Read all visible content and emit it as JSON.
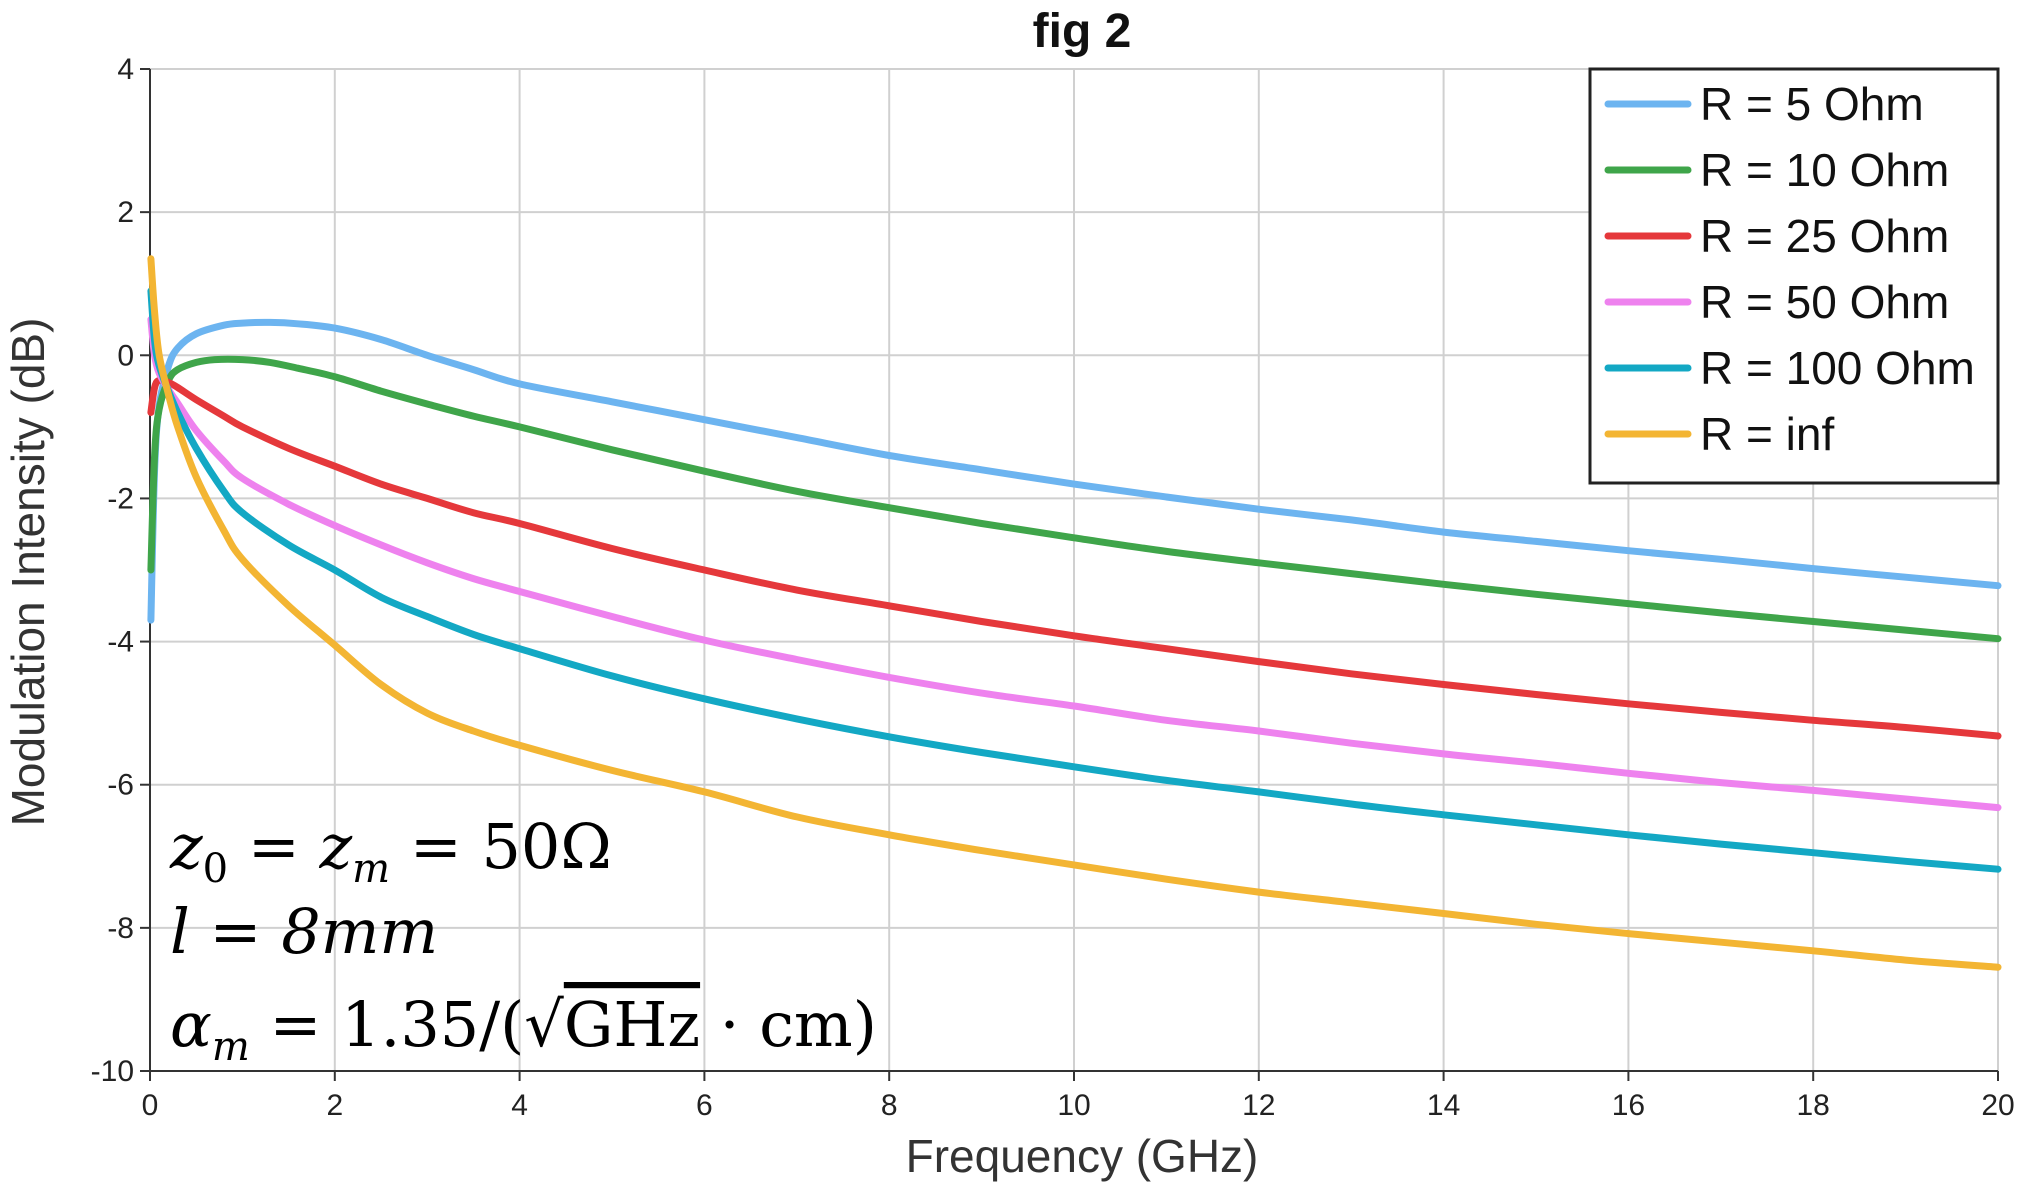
{
  "chart_data": {
    "type": "line",
    "title": "fig 2",
    "xlabel": "Frequency (GHz)",
    "ylabel": "Modulation Intensity (dB)",
    "xlim": [
      0,
      20
    ],
    "ylim": [
      -10,
      4
    ],
    "x_ticks": [
      0,
      2,
      4,
      6,
      8,
      10,
      12,
      14,
      16,
      18,
      20
    ],
    "y_ticks": [
      -10,
      -8,
      -6,
      -4,
      -2,
      0,
      2,
      4
    ],
    "grid": true,
    "legend_position": "top-right",
    "series": [
      {
        "name": "R = 5 Ohm",
        "color": "#6cb4f0",
        "x": [
          0.01,
          0.05,
          0.1,
          0.2,
          0.3,
          0.5,
          0.8,
          1.0,
          1.3,
          1.6,
          2.0,
          2.5,
          3.0,
          3.5,
          4.0,
          5.0,
          6.0,
          7.0,
          8.0,
          9.0,
          10.0,
          11.0,
          12.0,
          13.0,
          14.0,
          15.0,
          16.0,
          17.0,
          18.0,
          19.0,
          20.0
        ],
        "y": [
          -3.7,
          -1.6,
          -0.7,
          -0.15,
          0.1,
          0.3,
          0.42,
          0.45,
          0.46,
          0.44,
          0.38,
          0.22,
          0.0,
          -0.2,
          -0.4,
          -0.65,
          -0.9,
          -1.15,
          -1.4,
          -1.6,
          -1.8,
          -1.98,
          -2.15,
          -2.3,
          -2.47,
          -2.6,
          -2.73,
          -2.85,
          -2.98,
          -3.1,
          -3.22
        ]
      },
      {
        "name": "R = 10 Ohm",
        "color": "#3fa54a",
        "x": [
          0.01,
          0.05,
          0.1,
          0.2,
          0.3,
          0.5,
          0.7,
          1.0,
          1.3,
          1.6,
          2.0,
          2.5,
          3.0,
          3.5,
          4.0,
          5.0,
          6.0,
          7.0,
          8.0,
          9.0,
          10.0,
          11.0,
          12.0,
          13.0,
          14.0,
          15.0,
          16.0,
          17.0,
          18.0,
          19.0,
          20.0
        ],
        "y": [
          -3.0,
          -1.4,
          -0.75,
          -0.35,
          -0.2,
          -0.1,
          -0.06,
          -0.06,
          -0.1,
          -0.18,
          -0.3,
          -0.5,
          -0.68,
          -0.85,
          -1.0,
          -1.32,
          -1.62,
          -1.9,
          -2.13,
          -2.35,
          -2.55,
          -2.74,
          -2.9,
          -3.05,
          -3.2,
          -3.34,
          -3.47,
          -3.6,
          -3.72,
          -3.84,
          -3.96
        ]
      },
      {
        "name": "R = 25 Ohm",
        "color": "#e5383b",
        "x": [
          0.01,
          0.05,
          0.1,
          0.2,
          0.3,
          0.5,
          0.8,
          1.0,
          1.5,
          2.0,
          2.5,
          3.0,
          3.5,
          4.0,
          5.0,
          6.0,
          7.0,
          8.0,
          9.0,
          10.0,
          11.0,
          12.0,
          13.0,
          14.0,
          15.0,
          16.0,
          17.0,
          18.0,
          19.0,
          20.0
        ],
        "y": [
          -0.8,
          -0.45,
          -0.35,
          -0.38,
          -0.45,
          -0.62,
          -0.85,
          -1.0,
          -1.3,
          -1.55,
          -1.8,
          -2.0,
          -2.2,
          -2.35,
          -2.7,
          -3.0,
          -3.28,
          -3.5,
          -3.72,
          -3.92,
          -4.1,
          -4.28,
          -4.45,
          -4.6,
          -4.74,
          -4.87,
          -4.99,
          -5.1,
          -5.2,
          -5.32
        ]
      },
      {
        "name": "R = 50 Ohm",
        "color": "#ee82ee",
        "x": [
          0.01,
          0.05,
          0.1,
          0.2,
          0.3,
          0.5,
          0.8,
          1.0,
          1.5,
          2.0,
          2.5,
          3.0,
          3.5,
          4.0,
          5.0,
          6.0,
          7.0,
          8.0,
          9.0,
          10.0,
          11.0,
          12.0,
          13.0,
          14.0,
          15.0,
          16.0,
          17.0,
          18.0,
          19.0,
          20.0
        ],
        "y": [
          0.5,
          0.0,
          -0.25,
          -0.48,
          -0.67,
          -1.05,
          -1.48,
          -1.72,
          -2.08,
          -2.38,
          -2.65,
          -2.9,
          -3.12,
          -3.3,
          -3.65,
          -3.98,
          -4.25,
          -4.5,
          -4.72,
          -4.9,
          -5.1,
          -5.25,
          -5.42,
          -5.57,
          -5.7,
          -5.84,
          -5.97,
          -6.08,
          -6.2,
          -6.32
        ]
      },
      {
        "name": "R = 100 Ohm",
        "color": "#13a8c4",
        "x": [
          0.01,
          0.05,
          0.1,
          0.2,
          0.3,
          0.5,
          0.8,
          1.0,
          1.5,
          2.0,
          2.5,
          3.0,
          3.5,
          4.0,
          5.0,
          6.0,
          7.0,
          8.0,
          9.0,
          10.0,
          11.0,
          12.0,
          13.0,
          14.0,
          15.0,
          16.0,
          17.0,
          18.0,
          19.0,
          20.0
        ],
        "y": [
          0.9,
          0.2,
          -0.15,
          -0.5,
          -0.8,
          -1.3,
          -1.9,
          -2.2,
          -2.65,
          -3.0,
          -3.38,
          -3.65,
          -3.9,
          -4.1,
          -4.48,
          -4.8,
          -5.08,
          -5.33,
          -5.55,
          -5.75,
          -5.94,
          -6.1,
          -6.27,
          -6.42,
          -6.56,
          -6.7,
          -6.83,
          -6.95,
          -7.07,
          -7.18
        ]
      },
      {
        "name": "R = inf",
        "color": "#f3b533",
        "x": [
          0.01,
          0.05,
          0.1,
          0.2,
          0.3,
          0.5,
          0.8,
          1.0,
          1.5,
          2.0,
          2.5,
          3.0,
          3.5,
          4.0,
          5.0,
          6.0,
          7.0,
          8.0,
          9.0,
          10.0,
          11.0,
          12.0,
          13.0,
          14.0,
          15.0,
          16.0,
          17.0,
          18.0,
          19.0,
          20.0
        ],
        "y": [
          1.35,
          0.6,
          0.0,
          -0.55,
          -1.0,
          -1.7,
          -2.45,
          -2.85,
          -3.5,
          -4.05,
          -4.6,
          -5.0,
          -5.25,
          -5.45,
          -5.8,
          -6.1,
          -6.45,
          -6.7,
          -6.92,
          -7.12,
          -7.32,
          -7.5,
          -7.65,
          -7.8,
          -7.95,
          -8.08,
          -8.2,
          -8.32,
          -8.45,
          -8.55
        ]
      }
    ],
    "annotations": [
      {
        "prefix": "z",
        "sub1": "0",
        "mid1": " = ",
        "var2": "z",
        "sub2": "m",
        "tail": " = 50Ω"
      },
      {
        "text": "l = 8mm"
      },
      {
        "prefix": "α",
        "sub1": "m",
        "mid1": " = 1.35/(√",
        "tail_upright": "GHz",
        "tail_end": " · cm)"
      }
    ]
  }
}
